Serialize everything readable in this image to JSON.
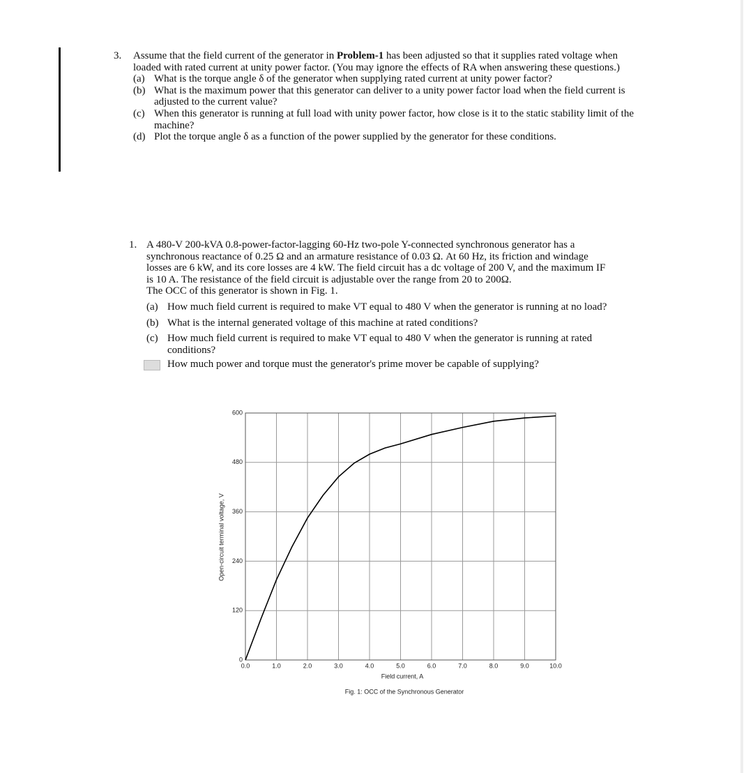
{
  "problem3": {
    "number": "3.",
    "intro_before": "Assume that the field current of the generator in ",
    "intro_bold": "Problem-1",
    "intro_after": " has been adjusted so that it supplies rated voltage when loaded with rated current at unity power factor. (You may ignore the effects of RA when answering these questions.)",
    "parts": [
      {
        "label": "(a)",
        "text": "What is the torque angle δ of the generator when supplying rated current at unity power factor?"
      },
      {
        "label": "(b)",
        "text": "What is the maximum power that this generator can deliver to a unity power factor load when the field current is adjusted to the current value?"
      },
      {
        "label": "(c)",
        "text": "When this generator is running at full load with unity power factor, how close is it to the static stability limit of the machine?"
      },
      {
        "label": "(d)",
        "text": "Plot the torque angle δ as a function of the power supplied by the generator for these conditions."
      }
    ]
  },
  "problem1": {
    "number": "1.",
    "intro": "A 480-V 200-kVA 0.8-power-factor-lagging 60-Hz two-pole Y-connected synchronous generator has a synchronous reactance of 0.25 Ω and an armature resistance of 0.03 Ω. At 60 Hz, its friction and windage losses are 6 kW, and its core losses are 4 kW. The field circuit has a dc voltage of 200 V, and the maximum IF is 10 A. The resistance of the field circuit is adjustable over the range from 20 to 200Ω.",
    "occ_note": "The OCC of this generator is shown in Fig. 1.",
    "parts": [
      {
        "label": "(a)",
        "text": "How much field current is required to make VT equal to 480 V when the generator is running at no load?"
      },
      {
        "label": "(b)",
        "text": "What is the internal generated voltage of this machine at rated conditions?"
      },
      {
        "label": "(c)",
        "text": "How much field current is required to make VT equal to 480 V when the generator is running at rated conditions?"
      }
    ],
    "last_question": "How much power and torque must the generator's prime mover be capable of supplying?"
  },
  "chart_data": {
    "type": "line",
    "caption": "Fig. 1: OCC of the Synchronous Generator",
    "x_label": "Field current, A",
    "y_label": "Open-circuit terminal voltage, V",
    "x": [
      0,
      0.5,
      1,
      1.5,
      2,
      2.5,
      3,
      3.5,
      4,
      4.5,
      5,
      6,
      7,
      8,
      9,
      10
    ],
    "values": [
      0,
      100,
      195,
      275,
      345,
      400,
      445,
      478,
      500,
      515,
      525,
      548,
      565,
      580,
      588,
      593
    ],
    "color": "#000000",
    "xlim": [
      0,
      10
    ],
    "ylim": [
      0,
      600
    ],
    "xticks": [
      {
        "value": 0,
        "label": "0.0"
      },
      {
        "value": 1,
        "label": "1.0"
      },
      {
        "value": 2,
        "label": "2.0"
      },
      {
        "value": 3,
        "label": "3.0"
      },
      {
        "value": 4,
        "label": "4.0"
      },
      {
        "value": 5,
        "label": "5.0"
      },
      {
        "value": 6,
        "label": "6.0"
      },
      {
        "value": 7,
        "label": "7.0"
      },
      {
        "value": 8,
        "label": "8.0"
      },
      {
        "value": 9,
        "label": "9.0"
      },
      {
        "value": 10,
        "label": "10.0"
      }
    ],
    "yticks": [
      0,
      120,
      240,
      360,
      480,
      600
    ],
    "grid": true
  }
}
